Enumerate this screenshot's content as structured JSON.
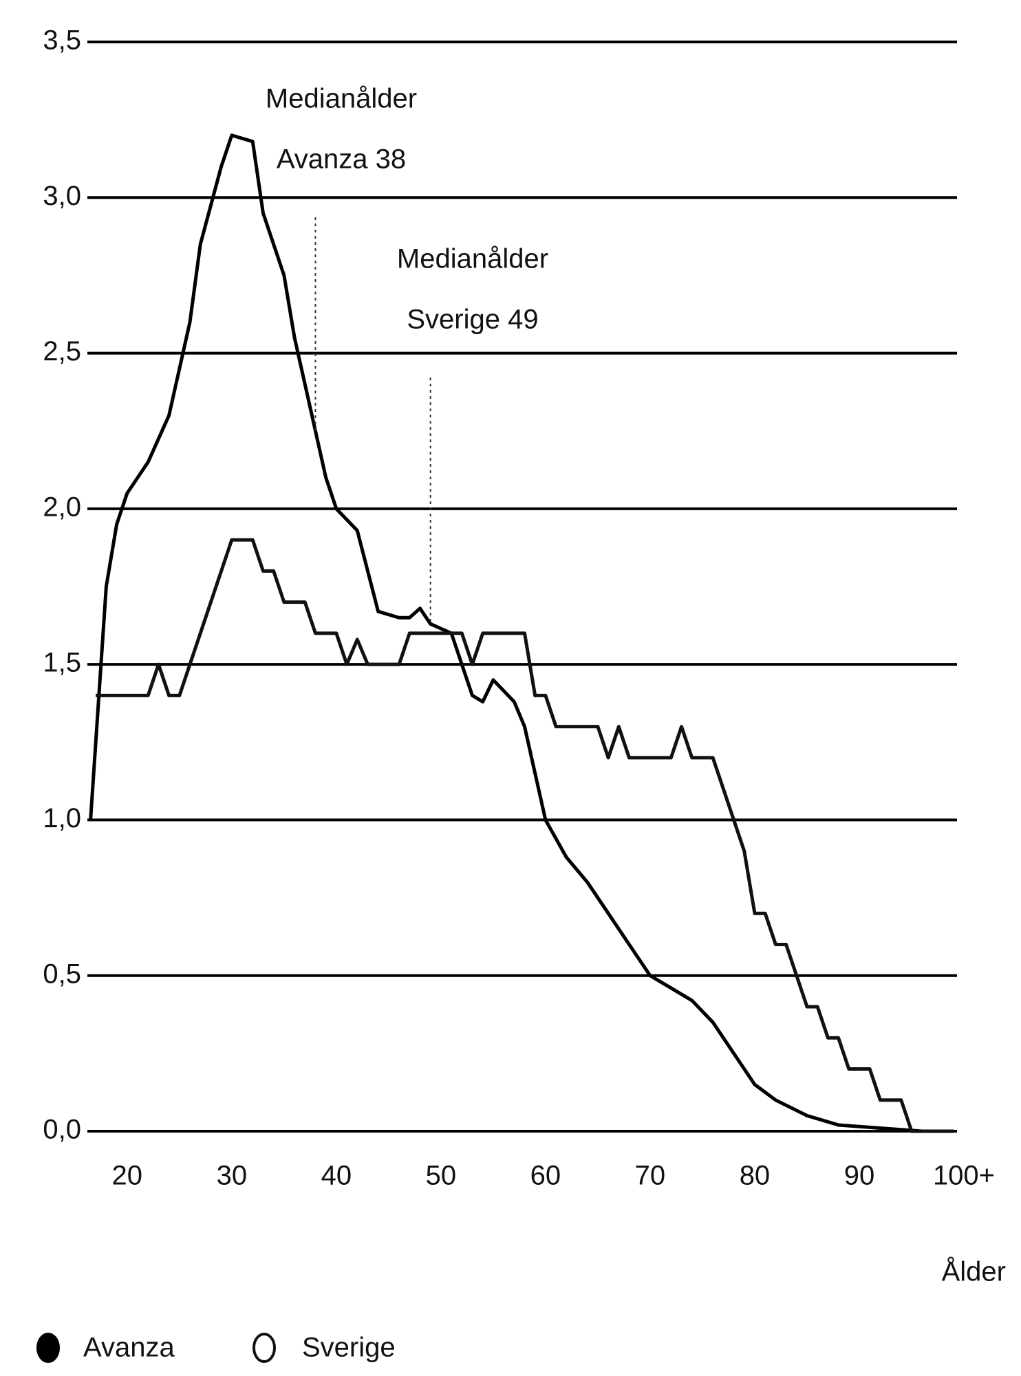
{
  "chart_data": {
    "type": "line",
    "annotations": [
      {
        "lines": [
          "Medianålder",
          "Avanza 38"
        ],
        "x": 38
      },
      {
        "lines": [
          "Medianålder",
          "Sverige 49"
        ],
        "x": 49
      }
    ],
    "x_label": "Ålder",
    "series": [
      {
        "name": "Avanza",
        "color": "#000000",
        "marker": "filled",
        "x": [
          16.5,
          18,
          19,
          20,
          22,
          24,
          26,
          27,
          29,
          30,
          32,
          33,
          35,
          36,
          37,
          38,
          39,
          40,
          42,
          43,
          44,
          46,
          47,
          48,
          49,
          51,
          52,
          53,
          54,
          55,
          57,
          58,
          59,
          60,
          62,
          64,
          66,
          68,
          70,
          72,
          74,
          76,
          78,
          80,
          82,
          85,
          88,
          92,
          96,
          99
        ],
        "values": [
          1.0,
          1.75,
          1.95,
          2.05,
          2.15,
          2.3,
          2.6,
          2.85,
          3.1,
          3.2,
          3.18,
          2.95,
          2.75,
          2.55,
          2.4,
          2.25,
          2.1,
          2.0,
          1.93,
          1.8,
          1.67,
          1.65,
          1.65,
          1.68,
          1.63,
          1.6,
          1.5,
          1.4,
          1.38,
          1.45,
          1.38,
          1.3,
          1.15,
          1.0,
          0.88,
          0.8,
          0.7,
          0.6,
          0.5,
          0.46,
          0.42,
          0.35,
          0.25,
          0.15,
          0.1,
          0.05,
          0.02,
          0.01,
          0.0,
          0.0
        ]
      },
      {
        "name": "Sverige",
        "color": "#111111",
        "marker": "hollow",
        "x": [
          17,
          22,
          23,
          24,
          25,
          30,
          32,
          33,
          34,
          35,
          37,
          38,
          40,
          41,
          42,
          43,
          46,
          47,
          50,
          52,
          53,
          54,
          58,
          59,
          60,
          61,
          65,
          66,
          67,
          68,
          72,
          73,
          74,
          76,
          78,
          79,
          80,
          81,
          82,
          83,
          84,
          85,
          86,
          87,
          88,
          89,
          90,
          91,
          92,
          94,
          95,
          99
        ],
        "values": [
          1.4,
          1.4,
          1.5,
          1.4,
          1.4,
          1.9,
          1.9,
          1.8,
          1.8,
          1.7,
          1.7,
          1.6,
          1.6,
          1.5,
          1.58,
          1.5,
          1.5,
          1.6,
          1.6,
          1.6,
          1.5,
          1.6,
          1.6,
          1.4,
          1.4,
          1.3,
          1.3,
          1.2,
          1.3,
          1.2,
          1.2,
          1.3,
          1.2,
          1.2,
          1.0,
          0.9,
          0.7,
          0.7,
          0.6,
          0.6,
          0.5,
          0.4,
          0.4,
          0.3,
          0.3,
          0.2,
          0.2,
          0.2,
          0.1,
          0.1,
          0.0,
          0.0
        ]
      }
    ],
    "xlim": [
      16,
      100
    ],
    "xticks": [
      20,
      30,
      40,
      50,
      60,
      70,
      80,
      90,
      {
        "value": 100,
        "label": "100+"
      }
    ],
    "ylim": [
      0,
      3.5
    ],
    "yticks": [
      {
        "value": 0,
        "label": "0,0"
      },
      {
        "value": 0.5,
        "label": "0,5"
      },
      {
        "value": 1,
        "label": "1,0"
      },
      {
        "value": 1.5,
        "label": "1,5"
      },
      {
        "value": 2,
        "label": "2,0"
      },
      {
        "value": 2.5,
        "label": "2,5"
      },
      {
        "value": 3,
        "label": "3,0"
      },
      {
        "value": 3.5,
        "label": "3,5"
      }
    ],
    "grid": true
  }
}
